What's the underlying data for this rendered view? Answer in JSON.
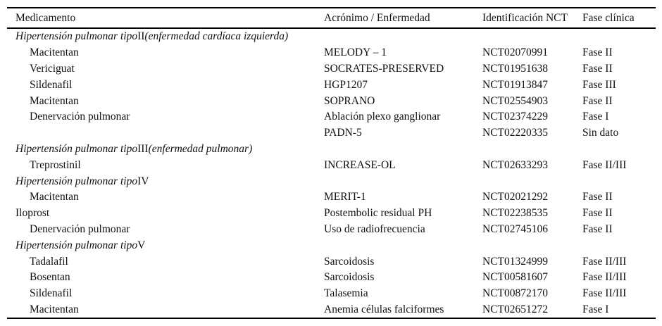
{
  "page": {
    "background": "#ffffff",
    "text_color": "#111111",
    "rule_color": "#000000"
  },
  "table": {
    "columns": [
      "Medicamento",
      "Acrónimo / Enfermedad",
      "Identificación NCT",
      "Fase clínica"
    ],
    "rows": [
      {
        "kind": "section",
        "prefix": "Hipertensión pulmonar tipo",
        "numeral": "II",
        "suffix": "(enfermedad cardíaca izquierda)"
      },
      {
        "kind": "trial",
        "indent": true,
        "cells": [
          "Macitentan",
          "MELODY – 1",
          "NCT02070991",
          "Fase II"
        ]
      },
      {
        "kind": "trial",
        "indent": true,
        "cells": [
          "Vericiguat",
          "SOCRATES-PRESERVED",
          "NCT01951638",
          "Fase II"
        ]
      },
      {
        "kind": "trial",
        "indent": true,
        "cells": [
          "Sildenafil",
          "HGP1207",
          "NCT01913847",
          "Fase III"
        ]
      },
      {
        "kind": "trial",
        "indent": true,
        "cells": [
          "Macitentan",
          "SOPRANO",
          "NCT02554903",
          "Fase II"
        ]
      },
      {
        "kind": "trial",
        "indent": true,
        "cells": [
          "Denervación pulmonar",
          "Ablación plexo ganglionar",
          "NCT02374229",
          "Fase I"
        ]
      },
      {
        "kind": "trial",
        "indent": true,
        "cells": [
          "",
          "PADN-5",
          "NCT02220335",
          "Sin dato"
        ]
      },
      {
        "kind": "section",
        "prefix": "Hipertensión pulmonar tipo",
        "numeral": "III",
        "suffix": "(enfermedad pulmonar)"
      },
      {
        "kind": "trial",
        "indent": true,
        "cells": [
          "Treprostinil",
          "INCREASE-OL",
          "NCT02633293",
          "Fase II/III"
        ]
      },
      {
        "kind": "section",
        "prefix": "Hipertensión pulmonar tipo",
        "numeral": "IV",
        "suffix": ""
      },
      {
        "kind": "trial",
        "indent": true,
        "cells": [
          "Macitentan",
          "MERIT-1",
          "NCT02021292",
          "Fase II"
        ]
      },
      {
        "kind": "trial",
        "indent": false,
        "cells": [
          "Iloprost",
          "Postembolic residual PH",
          "NCT02238535",
          "Fase II"
        ]
      },
      {
        "kind": "trial",
        "indent": true,
        "cells": [
          "Denervación pulmonar",
          "Uso de radiofrecuencia",
          "NCT02745106",
          "Fase II"
        ]
      },
      {
        "kind": "section",
        "prefix": "Hipertensión pulmonar tipo",
        "numeral": "V",
        "suffix": ""
      },
      {
        "kind": "trial",
        "indent": true,
        "cells": [
          "Tadalafil",
          "Sarcoidosis",
          "NCT01324999",
          "Fase II/III"
        ]
      },
      {
        "kind": "trial",
        "indent": true,
        "cells": [
          "Bosentan",
          "Sarcoidosis",
          "NCT00581607",
          "Fase II/III"
        ]
      },
      {
        "kind": "trial",
        "indent": true,
        "cells": [
          "Sildenafil",
          "Talasemia",
          "NCT00872170",
          "Fase II/III"
        ]
      },
      {
        "kind": "trial",
        "indent": true,
        "cells": [
          "Macitentan",
          "Anemia células falciformes",
          "NCT02651272",
          "Fase I"
        ]
      }
    ]
  }
}
